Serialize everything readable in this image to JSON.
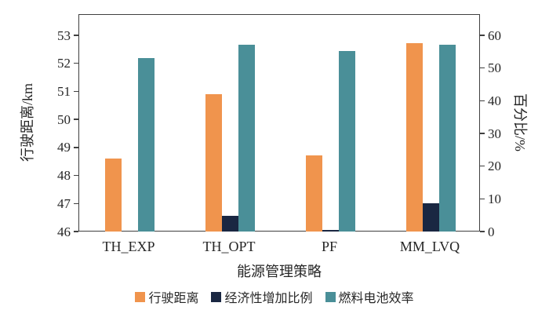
{
  "chart_data": {
    "type": "bar",
    "title": "",
    "xlabel": "能源管理策略",
    "categories": [
      "TH_EXP",
      "TH_OPT",
      "PF",
      "MM_LVQ"
    ],
    "series": [
      {
        "name": "行驶距离",
        "axis": "left",
        "color": "#F0944D",
        "values": [
          48.6,
          50.9,
          48.7,
          52.7
        ]
      },
      {
        "name": "经济性增加比例",
        "axis": "right",
        "color": "#1A2742",
        "values": [
          0,
          4.7,
          0.4,
          8.6
        ]
      },
      {
        "name": "燃料电池效率",
        "axis": "right",
        "color": "#4A8F98",
        "values": [
          53,
          57,
          55,
          57
        ]
      }
    ],
    "left_axis": {
      "label": "行驶距离/km",
      "min": 46,
      "max": 53,
      "ticks": [
        46,
        47,
        48,
        49,
        50,
        51,
        52,
        53
      ]
    },
    "right_axis": {
      "label": "百分比/%",
      "min": 0,
      "max": 60,
      "ticks": [
        0,
        10,
        20,
        30,
        40,
        50,
        60
      ]
    },
    "legend_position": "bottom",
    "grid": false
  }
}
